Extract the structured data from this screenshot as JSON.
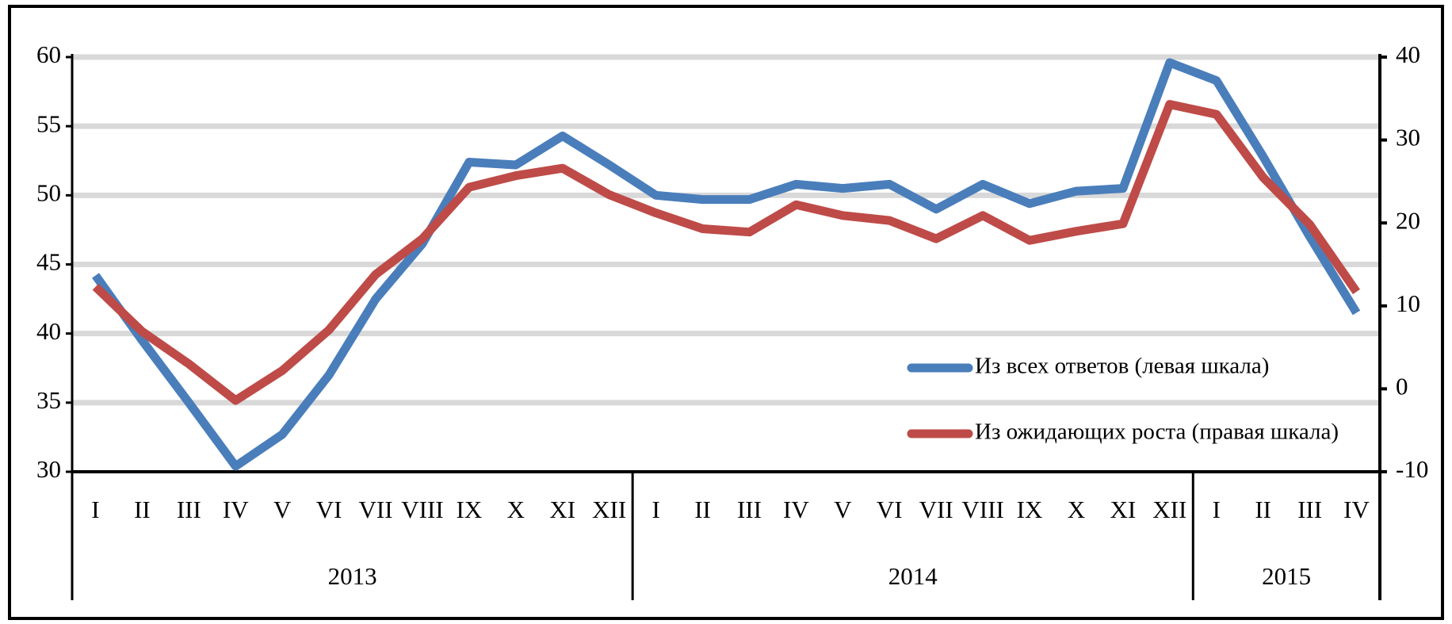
{
  "chart_data": {
    "type": "line",
    "categories": [
      "I",
      "II",
      "III",
      "IV",
      "V",
      "VI",
      "VII",
      "VIII",
      "IX",
      "X",
      "XI",
      "XII",
      "I",
      "II",
      "III",
      "IV",
      "V",
      "VI",
      "VII",
      "VIII",
      "IX",
      "X",
      "XI",
      "XII",
      "I",
      "II",
      "III",
      "IV"
    ],
    "x_groups": [
      {
        "label": "2013",
        "span": 12
      },
      {
        "label": "2014",
        "span": 12
      },
      {
        "label": "2015",
        "span": 4
      }
    ],
    "series": [
      {
        "name": "Из всех ответов (левая шкала)",
        "color": "#4a7ebb",
        "axis": "y",
        "values": [
          44.2,
          39.5,
          35,
          30.4,
          32.7,
          37,
          42.5,
          46.5,
          52.4,
          52.2,
          54.3,
          52.2,
          50,
          49.7,
          49.7,
          50.8,
          50.5,
          50.8,
          49,
          50.8,
          49.4,
          50.3,
          50.5,
          59.6,
          58.3,
          52.8,
          47,
          41.5
        ]
      },
      {
        "name": "Из ожидающих роста (правая шкала)",
        "color": "#be4b48",
        "axis": "y2",
        "values": [
          12.3,
          6.9,
          3,
          -1.4,
          2.2,
          7.1,
          13.8,
          18.1,
          24.3,
          25.7,
          26.6,
          23.4,
          21.2,
          19.3,
          18.9,
          22.2,
          20.9,
          20.3,
          18.1,
          20.9,
          17.9,
          19,
          19.9,
          34.3,
          33.1,
          25.5,
          19.8,
          11.7
        ]
      }
    ],
    "ylim": [
      30,
      60
    ],
    "yticks": [
      30,
      35,
      40,
      45,
      50,
      55,
      60
    ],
    "y2lim": [
      -10,
      40
    ],
    "y2ticks": [
      -10,
      0,
      10,
      20,
      30,
      40
    ],
    "grid": true
  }
}
